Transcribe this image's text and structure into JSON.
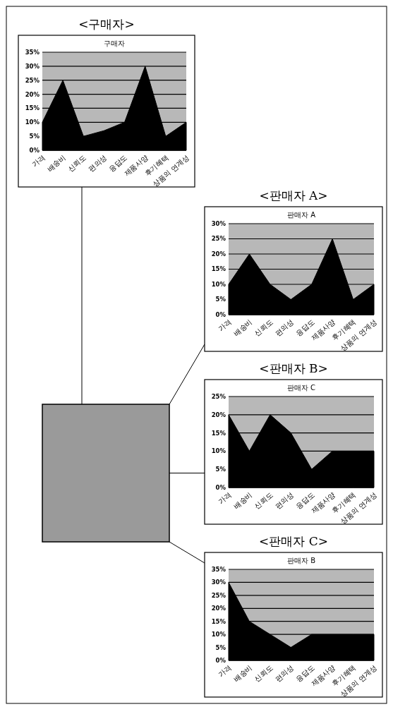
{
  "chart_data": [
    {
      "type": "area",
      "title": "<구매자>",
      "subtitle": "구매자",
      "categories": [
        "가격",
        "배송비",
        "신뢰도",
        "편의성",
        "응답도",
        "제품사양",
        "후기혜택",
        "상품의 연계성"
      ],
      "values": [
        10,
        25,
        5,
        7,
        10,
        30,
        5,
        10
      ],
      "color": "#000000",
      "ylim": [
        0,
        35
      ],
      "yticks": [
        {
          "value": 0,
          "label": "0%"
        },
        {
          "value": 5,
          "label": "5%"
        },
        {
          "value": 10,
          "label": "10%"
        },
        {
          "value": 15,
          "label": "15%"
        },
        {
          "value": 20,
          "label": "20%"
        },
        {
          "value": 25,
          "label": "25%"
        },
        {
          "value": 30,
          "label": "30%"
        },
        {
          "value": 35,
          "label": "35%"
        }
      ],
      "grid": "y"
    },
    {
      "type": "area",
      "title": "<판매자 A>",
      "subtitle": "판매자 A",
      "categories": [
        "가격",
        "배송비",
        "신뢰도",
        "편의성",
        "응답도",
        "제품사양",
        "후기혜택",
        "상품의 연계성"
      ],
      "values": [
        10,
        20,
        10,
        5,
        10,
        25,
        5,
        10
      ],
      "color": "#000000",
      "ylim": [
        0,
        30
      ],
      "yticks": [
        {
          "value": 0,
          "label": "0%"
        },
        {
          "value": 5,
          "label": "5%"
        },
        {
          "value": 10,
          "label": "10%"
        },
        {
          "value": 15,
          "label": "15%"
        },
        {
          "value": 20,
          "label": "20%"
        },
        {
          "value": 25,
          "label": "25%"
        },
        {
          "value": 30,
          "label": "30%"
        }
      ],
      "grid": "y"
    },
    {
      "type": "area",
      "title": "<판매자 B>",
      "subtitle": "판매자 C",
      "categories": [
        "가격",
        "배송비",
        "신뢰도",
        "편의성",
        "응답도",
        "제품사양",
        "후기혜택",
        "상품의 연계성"
      ],
      "values": [
        20,
        10,
        20,
        15,
        5,
        10,
        10,
        10
      ],
      "color": "#000000",
      "ylim": [
        0,
        25
      ],
      "yticks": [
        {
          "value": 0,
          "label": "0%"
        },
        {
          "value": 5,
          "label": "5%"
        },
        {
          "value": 10,
          "label": "10%"
        },
        {
          "value": 15,
          "label": "15%"
        },
        {
          "value": 20,
          "label": "20%"
        },
        {
          "value": 25,
          "label": "25%"
        }
      ],
      "grid": "y"
    },
    {
      "type": "area",
      "title": "<판매자 C>",
      "subtitle": "판매자 B",
      "categories": [
        "가격",
        "배송비",
        "신뢰도",
        "편의성",
        "응답도",
        "제품사양",
        "후기혜택",
        "상품의 연계성"
      ],
      "values": [
        30,
        15,
        10,
        5,
        10,
        10,
        10,
        10
      ],
      "color": "#000000",
      "ylim": [
        0,
        35
      ],
      "yticks": [
        {
          "value": 0,
          "label": "0%"
        },
        {
          "value": 5,
          "label": "5%"
        },
        {
          "value": 10,
          "label": "10%"
        },
        {
          "value": 15,
          "label": "15%"
        },
        {
          "value": 20,
          "label": "20%"
        },
        {
          "value": 25,
          "label": "25%"
        },
        {
          "value": 30,
          "label": "30%"
        },
        {
          "value": 35,
          "label": "35%"
        }
      ],
      "grid": "y"
    }
  ]
}
